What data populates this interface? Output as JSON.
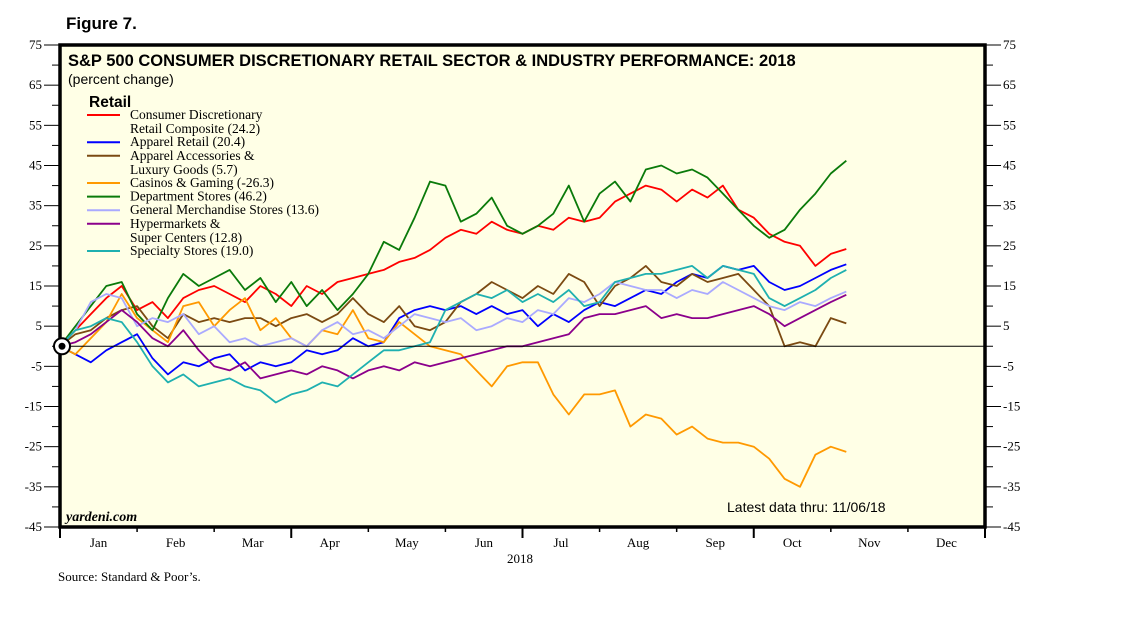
{
  "figure_label": "Figure 7.",
  "source": "Source: Standard & Poor’s.",
  "chart_data": {
    "type": "line",
    "title": "S&P 500 CONSUMER DISCRETIONARY RETAIL SECTOR & INDUSTRY PERFORMANCE: 2018",
    "subtitle": "(percent change)",
    "legend_title": "Retail",
    "legend_placement": "top-left",
    "xlabel": "2018",
    "ylabel": "",
    "ylim": [
      -45,
      75
    ],
    "yticks": [
      75,
      65,
      55,
      45,
      35,
      25,
      15,
      5,
      -5,
      -15,
      -25,
      -35,
      -45
    ],
    "ytick_labels": [
      "75",
      "65",
      "55",
      "45",
      "35",
      "25",
      "15",
      "5",
      "-5",
      "-15",
      "-25",
      "-35",
      "-45"
    ],
    "xlim_months": [
      0,
      12
    ],
    "x_unit": "months since Jan 1, 2018",
    "categories": [
      "Jan",
      "Feb",
      "Mar",
      "Apr",
      "May",
      "Jun",
      "Jul",
      "Aug",
      "Sep",
      "Oct",
      "Nov",
      "Dec"
    ],
    "zero_line": true,
    "grid": false,
    "brand": "yardeni.com",
    "annotation": "Latest data thru: 11/06/18",
    "series": [
      {
        "name": "Consumer Discretionary Retail Composite",
        "legend_lines": [
          "Consumer Discretionary",
          "Retail Composite (24.2)"
        ],
        "latest": 24.2,
        "color": "#ff0000",
        "x": [
          0,
          0.2,
          0.4,
          0.6,
          0.8,
          1.0,
          1.2,
          1.4,
          1.6,
          1.8,
          2.0,
          2.2,
          2.4,
          2.6,
          2.8,
          3.0,
          3.2,
          3.4,
          3.6,
          3.8,
          4.0,
          4.2,
          4.4,
          4.6,
          4.8,
          5.0,
          5.2,
          5.4,
          5.6,
          5.8,
          6.0,
          6.2,
          6.4,
          6.6,
          6.8,
          7.0,
          7.2,
          7.4,
          7.6,
          7.8,
          8.0,
          8.2,
          8.4,
          8.6,
          8.8,
          9.0,
          9.2,
          9.4,
          9.6,
          9.8,
          10.0,
          10.2
        ],
        "y": [
          0,
          4,
          8,
          12,
          15,
          9,
          11,
          7,
          12,
          14,
          15,
          13,
          11,
          15,
          13,
          10,
          15,
          13,
          16,
          17,
          18,
          19,
          21,
          22,
          24,
          27,
          29,
          28,
          31,
          29,
          28,
          30,
          29,
          32,
          31,
          32,
          36,
          38,
          40,
          39,
          36,
          39,
          37,
          40,
          34,
          32,
          28,
          26,
          25,
          20,
          23,
          24.2
        ]
      },
      {
        "name": "Apparel Retail",
        "legend_lines": [
          "Apparel Retail (20.4)"
        ],
        "latest": 20.4,
        "color": "#0000ff",
        "x": [
          0,
          0.2,
          0.4,
          0.6,
          0.8,
          1.0,
          1.2,
          1.4,
          1.6,
          1.8,
          2.0,
          2.2,
          2.4,
          2.6,
          2.8,
          3.0,
          3.2,
          3.4,
          3.6,
          3.8,
          4.0,
          4.2,
          4.4,
          4.6,
          4.8,
          5.0,
          5.2,
          5.4,
          5.6,
          5.8,
          6.0,
          6.2,
          6.4,
          6.6,
          6.8,
          7.0,
          7.2,
          7.4,
          7.6,
          7.8,
          8.0,
          8.2,
          8.4,
          8.6,
          8.8,
          9.0,
          9.2,
          9.4,
          9.6,
          9.8,
          10.0,
          10.2
        ],
        "y": [
          0,
          -2,
          -4,
          -1,
          1,
          3,
          -3,
          -7,
          -4,
          -5,
          -3,
          -2,
          -6,
          -4,
          -5,
          -4,
          -1,
          -2,
          -1,
          2,
          0,
          1,
          7,
          9,
          10,
          9,
          10,
          8,
          10,
          8,
          9,
          5,
          8,
          6,
          9,
          11,
          10,
          12,
          14,
          13,
          16,
          18,
          17,
          20,
          19,
          20,
          16,
          14,
          15,
          17,
          19,
          20.4
        ]
      },
      {
        "name": "Apparel Accessories & Luxury Goods",
        "legend_lines": [
          "Apparel Accessories &",
          "Luxury Goods (5.7)"
        ],
        "latest": 5.7,
        "color": "#7b4a12",
        "x": [
          0,
          0.2,
          0.4,
          0.6,
          0.8,
          1.0,
          1.2,
          1.4,
          1.6,
          1.8,
          2.0,
          2.2,
          2.4,
          2.6,
          2.8,
          3.0,
          3.2,
          3.4,
          3.6,
          3.8,
          4.0,
          4.2,
          4.4,
          4.6,
          4.8,
          5.0,
          5.2,
          5.4,
          5.6,
          5.8,
          6.0,
          6.2,
          6.4,
          6.6,
          6.8,
          7.0,
          7.2,
          7.4,
          7.6,
          7.8,
          8.0,
          8.2,
          8.4,
          8.6,
          8.8,
          9.0,
          9.2,
          9.4,
          9.6,
          9.8,
          10.0,
          10.2
        ],
        "y": [
          0,
          3,
          4,
          7,
          9,
          10,
          5,
          2,
          8,
          6,
          7,
          6,
          7,
          7,
          5,
          7,
          8,
          6,
          8,
          12,
          8,
          6,
          10,
          5,
          4,
          6,
          11,
          13,
          16,
          14,
          12,
          15,
          13,
          18,
          16,
          10,
          15,
          17,
          20,
          16,
          15,
          18,
          16,
          17,
          18,
          14,
          10,
          0,
          1,
          0,
          7,
          5.7
        ]
      },
      {
        "name": "Casinos & Gaming",
        "legend_lines": [
          "Casinos & Gaming (-26.3)"
        ],
        "latest": -26.3,
        "color": "#ff9900",
        "x": [
          0,
          0.2,
          0.4,
          0.6,
          0.8,
          1.0,
          1.2,
          1.4,
          1.6,
          1.8,
          2.0,
          2.2,
          2.4,
          2.6,
          2.8,
          3.0,
          3.2,
          3.4,
          3.6,
          3.8,
          4.0,
          4.2,
          4.4,
          4.6,
          4.8,
          5.0,
          5.2,
          5.4,
          5.6,
          5.8,
          6.0,
          6.2,
          6.4,
          6.6,
          6.8,
          7.0,
          7.2,
          7.4,
          7.6,
          7.8,
          8.0,
          8.2,
          8.4,
          8.6,
          8.8,
          9.0,
          9.2,
          9.4,
          9.6,
          9.8,
          10.0,
          10.2
        ],
        "y": [
          0,
          -2,
          2,
          6,
          13,
          7,
          4,
          1,
          10,
          11,
          5,
          9,
          12,
          4,
          7,
          2,
          0,
          4,
          3,
          9,
          2,
          1,
          6,
          3,
          0,
          -1,
          -2,
          -6,
          -10,
          -5,
          -4,
          -4,
          -12,
          -17,
          -12,
          -12,
          -11,
          -20,
          -17,
          -18,
          -22,
          -20,
          -23,
          -24,
          -24,
          -25,
          -28,
          -33,
          -35,
          -27,
          -25,
          -26.3
        ]
      },
      {
        "name": "Department Stores",
        "legend_lines": [
          "Department Stores (46.2)"
        ],
        "latest": 46.2,
        "color": "#0a7a0a",
        "x": [
          0,
          0.2,
          0.4,
          0.6,
          0.8,
          1.0,
          1.2,
          1.4,
          1.6,
          1.8,
          2.0,
          2.2,
          2.4,
          2.6,
          2.8,
          3.0,
          3.2,
          3.4,
          3.6,
          3.8,
          4.0,
          4.2,
          4.4,
          4.6,
          4.8,
          5.0,
          5.2,
          5.4,
          5.6,
          5.8,
          6.0,
          6.2,
          6.4,
          6.6,
          6.8,
          7.0,
          7.2,
          7.4,
          7.6,
          7.8,
          8.0,
          8.2,
          8.4,
          8.6,
          8.8,
          9.0,
          9.2,
          9.4,
          9.6,
          9.8,
          10.0,
          10.2
        ],
        "y": [
          0,
          5,
          10,
          15,
          16,
          8,
          4,
          12,
          18,
          15,
          17,
          19,
          14,
          17,
          11,
          16,
          10,
          14,
          9,
          13,
          18,
          26,
          24,
          32,
          41,
          40,
          31,
          33,
          37,
          30,
          28,
          30,
          33,
          40,
          31,
          38,
          41,
          36,
          44,
          45,
          43,
          44,
          42,
          38,
          34,
          30,
          27,
          29,
          34,
          38,
          43,
          46.2
        ]
      },
      {
        "name": "General Merchandise Stores",
        "legend_lines": [
          "General Merchandise Stores (13.6)"
        ],
        "latest": 13.6,
        "color": "#aaaaff",
        "x": [
          0,
          0.2,
          0.4,
          0.6,
          0.8,
          1.0,
          1.2,
          1.4,
          1.6,
          1.8,
          2.0,
          2.2,
          2.4,
          2.6,
          2.8,
          3.0,
          3.2,
          3.4,
          3.6,
          3.8,
          4.0,
          4.2,
          4.4,
          4.6,
          4.8,
          5.0,
          5.2,
          5.4,
          5.6,
          5.8,
          6.0,
          6.2,
          6.4,
          6.6,
          6.8,
          7.0,
          7.2,
          7.4,
          7.6,
          7.8,
          8.0,
          8.2,
          8.4,
          8.6,
          8.8,
          9.0,
          9.2,
          9.4,
          9.6,
          9.8,
          10.0,
          10.2
        ],
        "y": [
          0,
          4,
          11,
          13,
          12,
          5,
          7,
          6,
          8,
          3,
          5,
          1,
          2,
          0,
          1,
          2,
          0,
          4,
          6,
          3,
          4,
          2,
          5,
          8,
          7,
          6,
          7,
          4,
          5,
          7,
          6,
          9,
          8,
          12,
          11,
          13,
          16,
          15,
          14,
          14,
          12,
          14,
          13,
          16,
          14,
          12,
          10,
          9,
          11,
          10,
          12,
          13.6
        ]
      },
      {
        "name": "Hypermarkets & Super Centers",
        "legend_lines": [
          "Hypermarkets &",
          "Super Centers (12.8)"
        ],
        "latest": 12.8,
        "color": "#8b008b",
        "x": [
          0,
          0.2,
          0.4,
          0.6,
          0.8,
          1.0,
          1.2,
          1.4,
          1.6,
          1.8,
          2.0,
          2.2,
          2.4,
          2.6,
          2.8,
          3.0,
          3.2,
          3.4,
          3.6,
          3.8,
          4.0,
          4.2,
          4.4,
          4.6,
          4.8,
          5.0,
          5.2,
          5.4,
          5.6,
          5.8,
          6.0,
          6.2,
          6.4,
          6.6,
          6.8,
          7.0,
          7.2,
          7.4,
          7.6,
          7.8,
          8.0,
          8.2,
          8.4,
          8.6,
          8.8,
          9.0,
          9.2,
          9.4,
          9.6,
          9.8,
          10.0,
          10.2
        ],
        "y": [
          0,
          1,
          3,
          6,
          9,
          6,
          2,
          0,
          4,
          -1,
          -5,
          -6,
          -4,
          -8,
          -7,
          -6,
          -7,
          -5,
          -6,
          -8,
          -6,
          -5,
          -6,
          -4,
          -5,
          -4,
          -3,
          -2,
          -1,
          0,
          0,
          1,
          2,
          3,
          7,
          8,
          8,
          9,
          10,
          7,
          8,
          7,
          7,
          8,
          9,
          10,
          8,
          5,
          7,
          9,
          11,
          12.8
        ]
      },
      {
        "name": "Specialty Stores",
        "legend_lines": [
          "Specialty Stores (19.0)"
        ],
        "latest": 19.0,
        "color": "#1fb0b0",
        "x": [
          0,
          0.2,
          0.4,
          0.6,
          0.8,
          1.0,
          1.2,
          1.4,
          1.6,
          1.8,
          2.0,
          2.2,
          2.4,
          2.6,
          2.8,
          3.0,
          3.2,
          3.4,
          3.6,
          3.8,
          4.0,
          4.2,
          4.4,
          4.6,
          4.8,
          5.0,
          5.2,
          5.4,
          5.6,
          5.8,
          6.0,
          6.2,
          6.4,
          6.6,
          6.8,
          7.0,
          7.2,
          7.4,
          7.6,
          7.8,
          8.0,
          8.2,
          8.4,
          8.6,
          8.8,
          9.0,
          9.2,
          9.4,
          9.6,
          9.8,
          10.0,
          10.2
        ],
        "y": [
          0,
          4,
          5,
          7,
          6,
          1,
          -5,
          -9,
          -7,
          -10,
          -9,
          -8,
          -10,
          -11,
          -14,
          -12,
          -11,
          -9,
          -10,
          -7,
          -4,
          -1,
          -1,
          0,
          1,
          9,
          11,
          13,
          12,
          14,
          11,
          13,
          11,
          14,
          10,
          11,
          16,
          17,
          18,
          18,
          19,
          20,
          17,
          20,
          19,
          18,
          12,
          10,
          12,
          14,
          17,
          19.0
        ]
      }
    ]
  }
}
